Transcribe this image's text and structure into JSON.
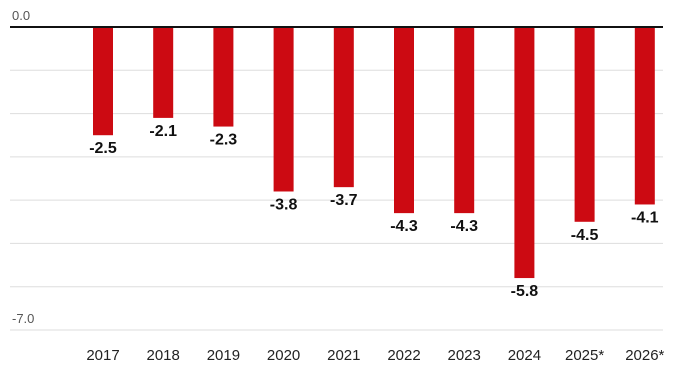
{
  "chart_data": {
    "type": "bar",
    "categories": [
      "2017",
      "2018",
      "2019",
      "2020",
      "2021",
      "2022",
      "2023",
      "2024",
      "2025*",
      "2026*"
    ],
    "values": [
      -2.5,
      -2.1,
      -2.3,
      -3.8,
      -3.7,
      -4.3,
      -4.3,
      -5.8,
      -4.5,
      -4.1
    ],
    "value_labels": [
      "-2.5",
      "-2.1",
      "-2.3",
      "-3.8",
      "-3.7",
      "-4.3",
      "-4.3",
      "-5.8",
      "-4.5",
      "-4.1"
    ],
    "y_tick_values": [
      0.0,
      -7.0
    ],
    "y_tick_labels": [
      "0.0",
      "-7.0"
    ],
    "ylim": [
      -7.0,
      0.0
    ],
    "gridline_values": [
      -1,
      -2,
      -3,
      -4,
      -5,
      -6,
      -7
    ],
    "grid": true,
    "bar_color": "#cc0a12",
    "zero_line_color": "#111111",
    "grid_color": "#dddddd",
    "title": "",
    "xlabel": "",
    "ylabel": ""
  }
}
